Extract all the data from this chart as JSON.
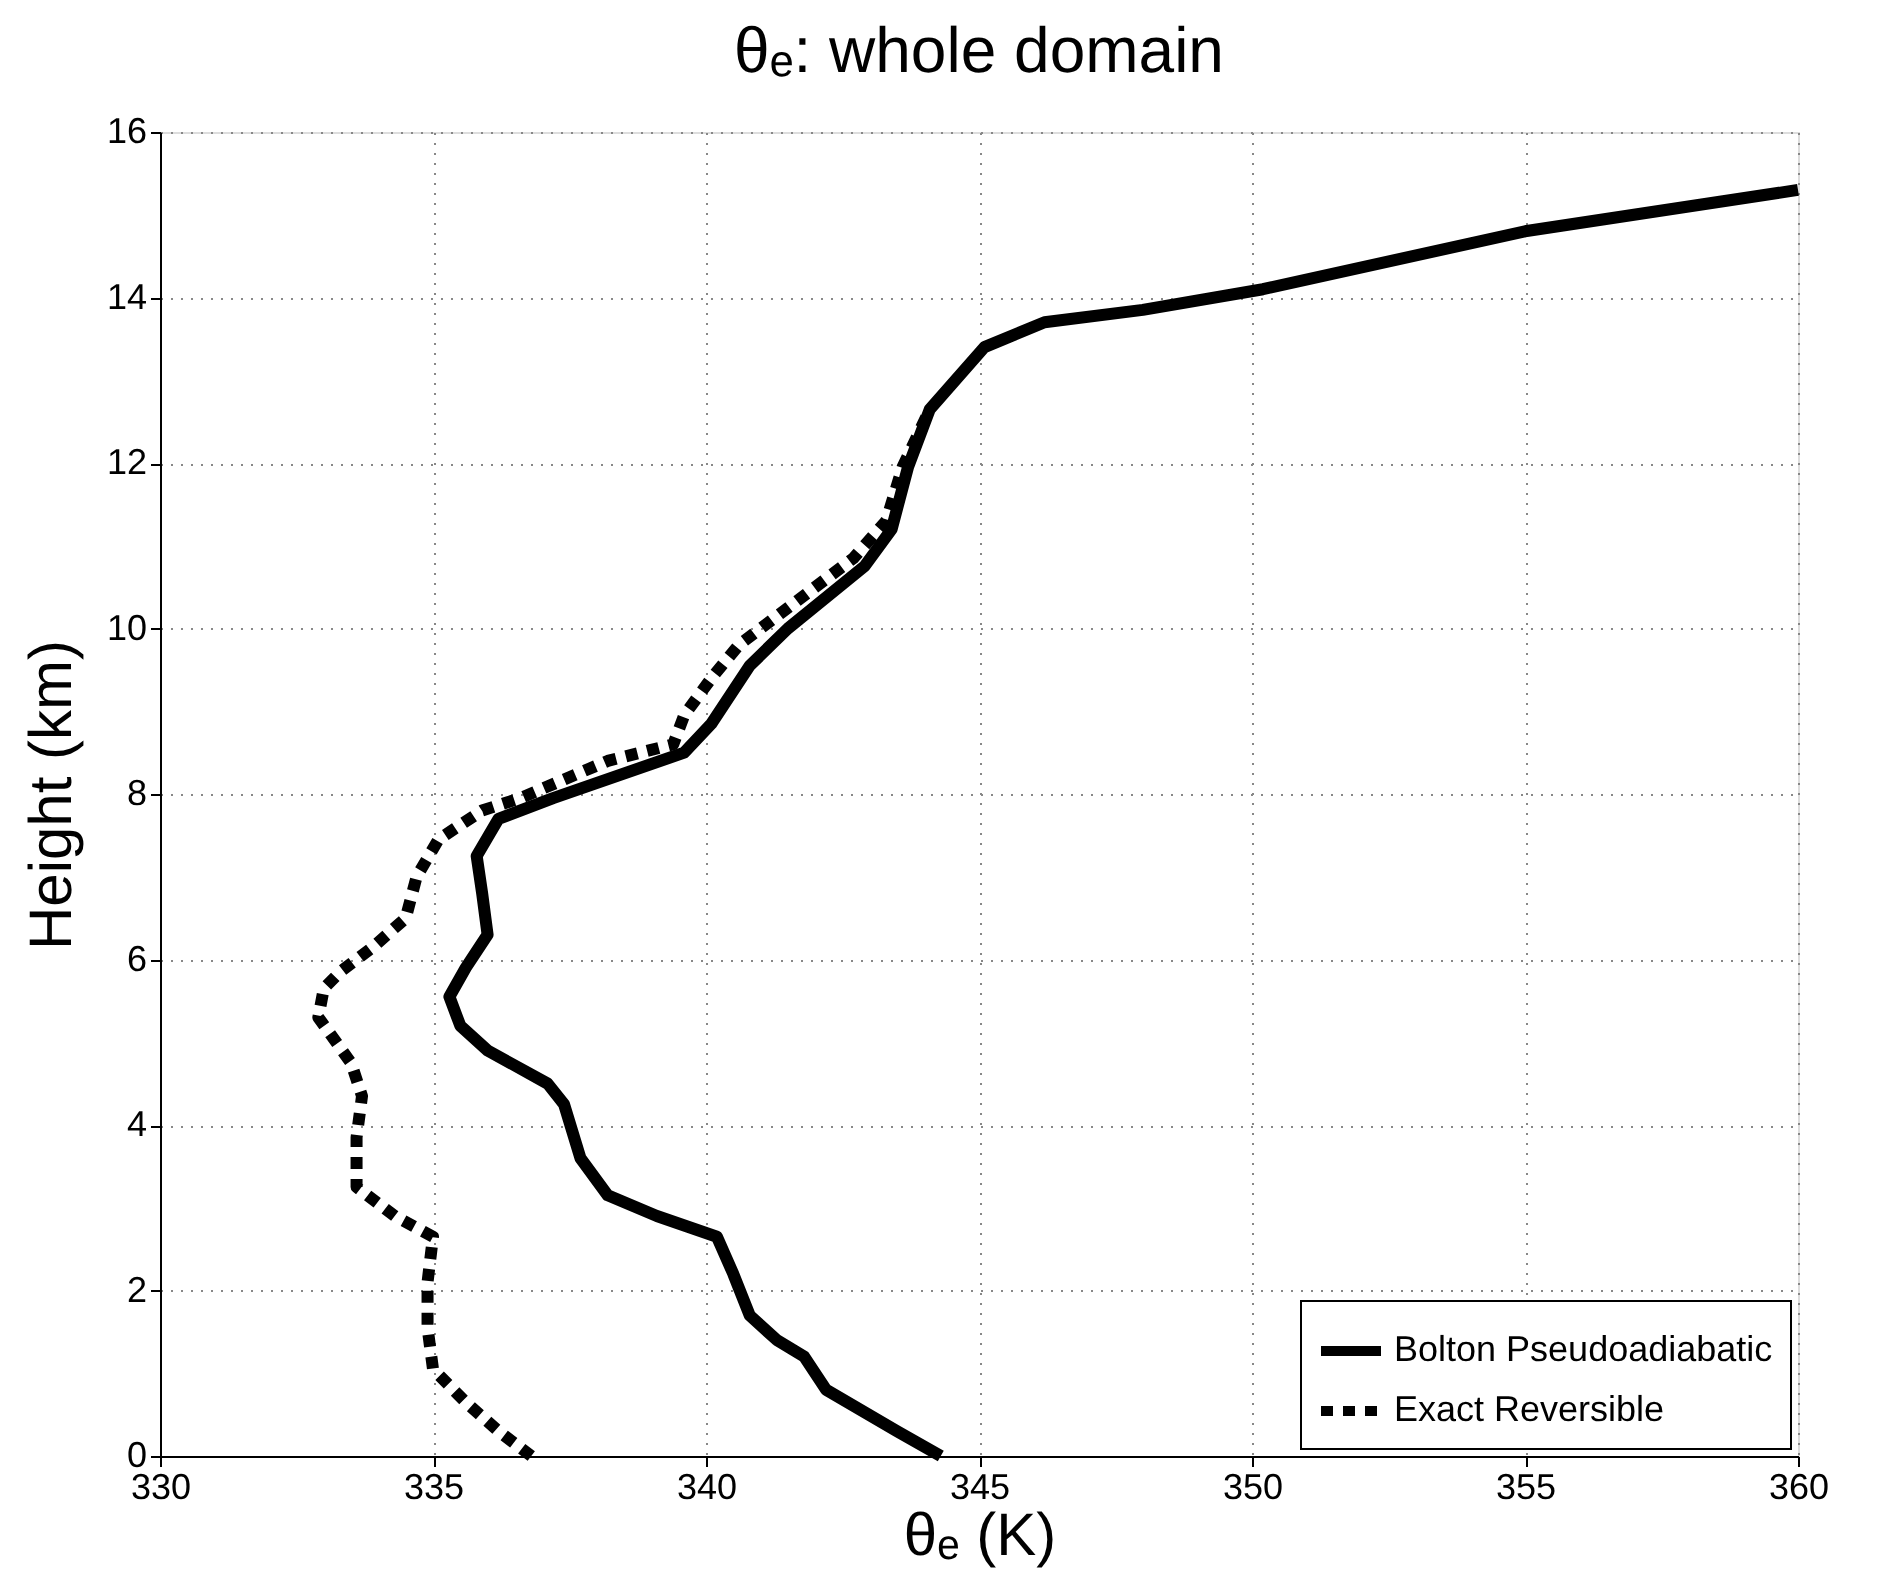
{
  "chart_data": {
    "type": "line",
    "title": "θₑ: whole domain",
    "xlabel": "θₑ (K)",
    "ylabel": "Height (km)",
    "xlim": [
      330,
      360
    ],
    "xticks": [
      330,
      335,
      340,
      345,
      350,
      355,
      360
    ],
    "ylim": [
      0,
      16
    ],
    "yticks": [
      0,
      2,
      4,
      6,
      8,
      10,
      12,
      14,
      16
    ],
    "grid": true,
    "legend": "bottom right",
    "series": [
      {
        "name": "Bolton Pseudoadiabatic",
        "color": "#000000",
        "line_style": "solid",
        "x": [
          344.3,
          343.5,
          342.2,
          341.8,
          341.3,
          340.8,
          340.5,
          340.2,
          339.1,
          338.2,
          337.7,
          337.4,
          337.1,
          336.0,
          335.5,
          335.3,
          335.6,
          336.0,
          335.9,
          335.8,
          336.2,
          337.2,
          339.6,
          340.1,
          340.8,
          341.5,
          342.9,
          343.4,
          343.7,
          344.1,
          345.1,
          346.2,
          348.0,
          350.2,
          355.0,
          360.0
        ],
        "values": [
          0,
          0.3,
          0.8,
          1.2,
          1.4,
          1.7,
          2.2,
          2.65,
          2.9,
          3.15,
          3.6,
          4.25,
          4.5,
          4.9,
          5.2,
          5.55,
          5.9,
          6.3,
          6.8,
          7.25,
          7.7,
          7.95,
          8.5,
          8.85,
          9.55,
          10.0,
          10.75,
          11.2,
          11.95,
          12.65,
          13.4,
          13.7,
          13.85,
          14.1,
          14.8,
          15.3
        ]
      },
      {
        "name": "Exact Reversible",
        "color": "#000000",
        "line_style": "dashed",
        "x": [
          336.8,
          336.2,
          335.6,
          335.0,
          334.9,
          334.9,
          335.0,
          334.3,
          333.6,
          333.6,
          333.7,
          333.5,
          332.9,
          333.0,
          333.3,
          333.9,
          334.5,
          334.7,
          335.1,
          335.9,
          336.6,
          338.2,
          339.4,
          339.6,
          340.1,
          340.6,
          341.3,
          342.7,
          343.3,
          343.6,
          344.1
        ],
        "values": [
          0,
          0.3,
          0.65,
          1.05,
          1.55,
          2.1,
          2.65,
          2.9,
          3.25,
          3.85,
          4.35,
          4.75,
          5.3,
          5.65,
          5.85,
          6.15,
          6.5,
          7.0,
          7.45,
          7.8,
          7.95,
          8.4,
          8.6,
          8.95,
          9.4,
          9.8,
          10.15,
          10.85,
          11.3,
          11.95,
          12.65
        ]
      }
    ]
  }
}
